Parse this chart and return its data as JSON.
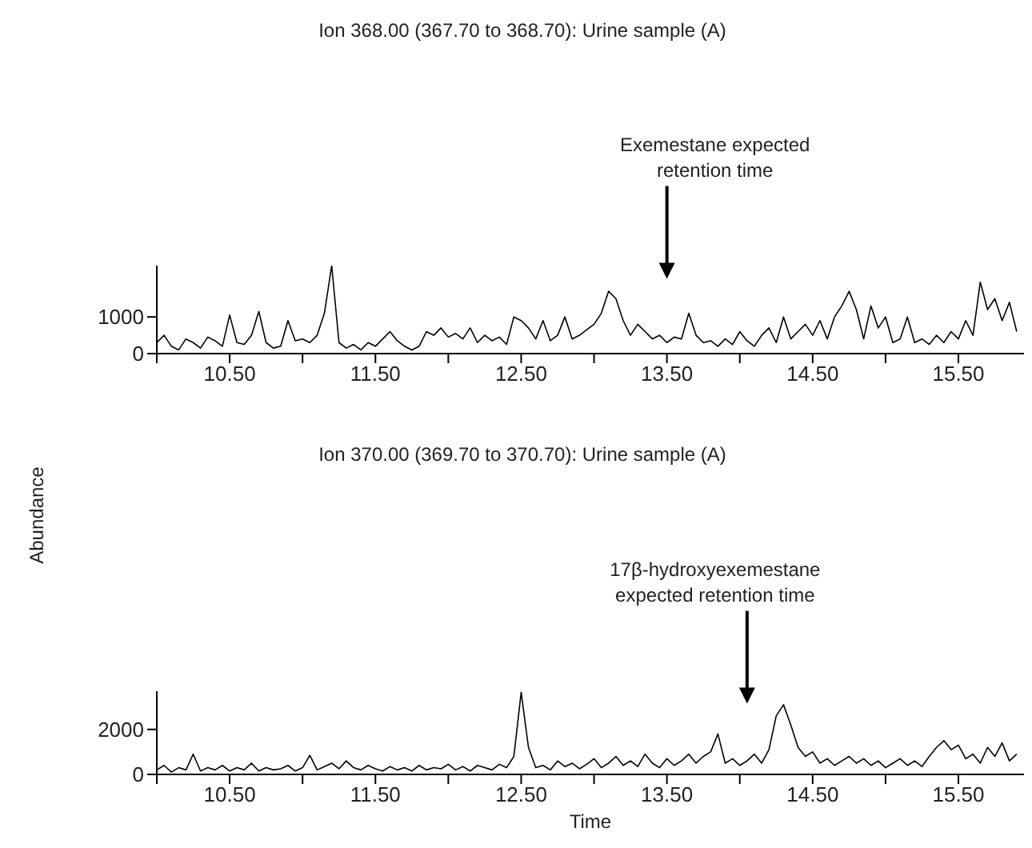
{
  "chart_data": [
    {
      "type": "line",
      "title": "Ion 368.00 (367.70 to 368.70): Urine sample (A)",
      "ref_lines": [
        {
          "axis": "x",
          "value": 13.5,
          "label": "Exemestane expected retention time"
        }
      ],
      "x": [
        10.0,
        10.05,
        10.1,
        10.15,
        10.2,
        10.25,
        10.3,
        10.35,
        10.4,
        10.45,
        10.5,
        10.55,
        10.6,
        10.65,
        10.7,
        10.75,
        10.8,
        10.85,
        10.9,
        10.95,
        11.0,
        11.05,
        11.1,
        11.15,
        11.2,
        11.25,
        11.3,
        11.35,
        11.4,
        11.45,
        11.5,
        11.55,
        11.6,
        11.65,
        11.7,
        11.75,
        11.8,
        11.85,
        11.9,
        11.95,
        12.0,
        12.05,
        12.1,
        12.15,
        12.2,
        12.25,
        12.3,
        12.35,
        12.4,
        12.45,
        12.5,
        12.55,
        12.6,
        12.65,
        12.7,
        12.75,
        12.8,
        12.85,
        12.9,
        12.95,
        13.0,
        13.05,
        13.1,
        13.15,
        13.2,
        13.25,
        13.3,
        13.35,
        13.4,
        13.45,
        13.5,
        13.55,
        13.6,
        13.65,
        13.7,
        13.75,
        13.8,
        13.85,
        13.9,
        13.95,
        14.0,
        14.05,
        14.1,
        14.15,
        14.2,
        14.25,
        14.3,
        14.35,
        14.4,
        14.45,
        14.5,
        14.55,
        14.6,
        14.65,
        14.7,
        14.75,
        14.8,
        14.85,
        14.9,
        14.95,
        15.0,
        15.05,
        15.1,
        15.15,
        15.2,
        15.25,
        15.3,
        15.35,
        15.4,
        15.45,
        15.5,
        15.55,
        15.6,
        15.65,
        15.7,
        15.75,
        15.8,
        15.85,
        15.9
      ],
      "series": [
        {
          "color": "#000000",
          "values": [
            300,
            500,
            200,
            100,
            400,
            300,
            150,
            450,
            350,
            200,
            1050,
            300,
            250,
            500,
            1150,
            300,
            150,
            200,
            900,
            350,
            400,
            300,
            500,
            1100,
            2400,
            300,
            150,
            250,
            100,
            300,
            200,
            400,
            600,
            350,
            200,
            100,
            200,
            600,
            500,
            700,
            450,
            550,
            400,
            700,
            300,
            500,
            350,
            450,
            250,
            1000,
            900,
            700,
            400,
            900,
            350,
            500,
            1000,
            400,
            500,
            650,
            800,
            1100,
            1700,
            1500,
            900,
            500,
            800,
            600,
            400,
            500,
            300,
            450,
            400,
            1100,
            500,
            300,
            350,
            200,
            400,
            250,
            600,
            350,
            200,
            500,
            700,
            300,
            1000,
            400,
            600,
            800,
            500,
            900,
            400,
            1000,
            1300,
            1700,
            1200,
            400,
            1300,
            700,
            1000,
            300,
            400,
            1000,
            300,
            400,
            250,
            500,
            300,
            600,
            400,
            900,
            500,
            1950,
            1200,
            1500,
            900,
            1400,
            600
          ]
        }
      ],
      "xlim": [
        10.0,
        15.95
      ],
      "xticks": [
        {
          "value": 10,
          "label": null
        },
        {
          "value": 10.5,
          "label": "10.50"
        },
        {
          "value": 11,
          "label": null
        },
        {
          "value": 11.5,
          "label": "11.50"
        },
        {
          "value": 12,
          "label": null
        },
        {
          "value": 12.5,
          "label": "12.50"
        },
        {
          "value": 13,
          "label": null
        },
        {
          "value": 13.5,
          "label": "13.50"
        },
        {
          "value": 14,
          "label": null
        },
        {
          "value": 14.5,
          "label": "14.50"
        },
        {
          "value": 15,
          "label": null
        },
        {
          "value": 15.5,
          "label": "15.50"
        }
      ],
      "ylim": [
        0,
        2400
      ],
      "yticks": [
        0,
        1000
      ]
    },
    {
      "type": "line",
      "title": "Ion 370.00 (369.70 to 370.70): Urine sample (A)",
      "xlabel": "Time",
      "ylabel": "Abundance",
      "ref_lines": [
        {
          "axis": "x",
          "value": 14.05,
          "label": "17β-hydroxyexemestane expected retention time"
        }
      ],
      "x": [
        10.0,
        10.05,
        10.1,
        10.15,
        10.2,
        10.25,
        10.3,
        10.35,
        10.4,
        10.45,
        10.5,
        10.55,
        10.6,
        10.65,
        10.7,
        10.75,
        10.8,
        10.85,
        10.9,
        10.95,
        11.0,
        11.05,
        11.1,
        11.15,
        11.2,
        11.25,
        11.3,
        11.35,
        11.4,
        11.45,
        11.5,
        11.55,
        11.6,
        11.65,
        11.7,
        11.75,
        11.8,
        11.85,
        11.9,
        11.95,
        12.0,
        12.05,
        12.1,
        12.15,
        12.2,
        12.25,
        12.3,
        12.35,
        12.4,
        12.45,
        12.5,
        12.55,
        12.6,
        12.65,
        12.7,
        12.75,
        12.8,
        12.85,
        12.9,
        12.95,
        13.0,
        13.05,
        13.1,
        13.15,
        13.2,
        13.25,
        13.3,
        13.35,
        13.4,
        13.45,
        13.5,
        13.55,
        13.6,
        13.65,
        13.7,
        13.75,
        13.8,
        13.85,
        13.9,
        13.95,
        14.0,
        14.05,
        14.1,
        14.15,
        14.2,
        14.25,
        14.3,
        14.35,
        14.4,
        14.45,
        14.5,
        14.55,
        14.6,
        14.65,
        14.7,
        14.75,
        14.8,
        14.85,
        14.9,
        14.95,
        15.0,
        15.05,
        15.1,
        15.15,
        15.2,
        15.25,
        15.3,
        15.35,
        15.4,
        15.45,
        15.5,
        15.55,
        15.6,
        15.65,
        15.7,
        15.75,
        15.8,
        15.85,
        15.9
      ],
      "series": [
        {
          "color": "#000000",
          "values": [
            200,
            400,
            100,
            300,
            200,
            900,
            150,
            300,
            200,
            400,
            150,
            300,
            200,
            500,
            150,
            300,
            200,
            250,
            400,
            150,
            300,
            850,
            200,
            350,
            500,
            250,
            600,
            300,
            200,
            400,
            250,
            150,
            350,
            200,
            300,
            150,
            400,
            200,
            300,
            250,
            450,
            200,
            350,
            150,
            400,
            300,
            200,
            450,
            300,
            800,
            3650,
            1200,
            300,
            400,
            200,
            600,
            350,
            500,
            250,
            450,
            700,
            300,
            500,
            800,
            400,
            600,
            350,
            900,
            500,
            300,
            700,
            400,
            600,
            900,
            500,
            800,
            1000,
            1800,
            500,
            700,
            400,
            600,
            900,
            500,
            1100,
            2600,
            3100,
            2200,
            1200,
            800,
            1000,
            500,
            700,
            400,
            600,
            800,
            500,
            700,
            400,
            600,
            300,
            500,
            700,
            400,
            600,
            350,
            800,
            1200,
            1500,
            1100,
            1300,
            700,
            900,
            500,
            1200,
            800,
            1400,
            600,
            900
          ]
        }
      ],
      "xlim": [
        10.0,
        15.95
      ],
      "xticks": [
        {
          "value": 10,
          "label": null
        },
        {
          "value": 10.5,
          "label": "10.50"
        },
        {
          "value": 11,
          "label": null
        },
        {
          "value": 11.5,
          "label": "11.50"
        },
        {
          "value": 12,
          "label": null
        },
        {
          "value": 12.5,
          "label": "12.50"
        },
        {
          "value": 13,
          "label": null
        },
        {
          "value": 13.5,
          "label": "13.50"
        },
        {
          "value": 14,
          "label": null
        },
        {
          "value": 14.5,
          "label": "14.50"
        },
        {
          "value": 15,
          "label": null
        },
        {
          "value": 15.5,
          "label": "15.50"
        }
      ],
      "ylim": [
        0,
        3700
      ],
      "yticks": [
        0,
        2000
      ]
    }
  ]
}
